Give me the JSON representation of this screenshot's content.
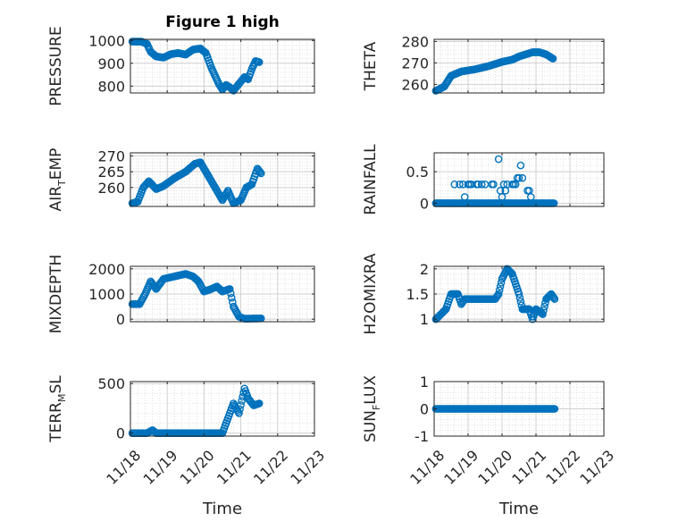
{
  "figure_title": "Figure 1 high",
  "chart_data": {
    "type": "scatter",
    "marker": "o",
    "color": "#0072BD",
    "x_axis": {
      "label": "Time",
      "tick_labels": [
        "11/18",
        "11/19",
        "11/20",
        "11/21",
        "11/22",
        "11/23"
      ],
      "tick_days": [
        0,
        1,
        2,
        3,
        4,
        5
      ],
      "xlim": [
        0,
        5
      ]
    },
    "panels": [
      {
        "name": "pressure",
        "ylabel": "PRESSURE",
        "title": "Figure 1 high",
        "ylim": [
          770,
          1005
        ],
        "yticks": [
          800,
          900,
          1000
        ],
        "ytick_labels": [
          "800",
          "900",
          "1000"
        ],
        "knots": [
          [
            0.05,
            995
          ],
          [
            0.3,
            995
          ],
          [
            0.45,
            985
          ],
          [
            0.55,
            950
          ],
          [
            0.7,
            930
          ],
          [
            0.9,
            925
          ],
          [
            1.1,
            940
          ],
          [
            1.3,
            945
          ],
          [
            1.5,
            938
          ],
          [
            1.7,
            960
          ],
          [
            1.9,
            965
          ],
          [
            2.05,
            945
          ],
          [
            2.2,
            880
          ],
          [
            2.4,
            810
          ],
          [
            2.5,
            785
          ],
          [
            2.6,
            805
          ],
          [
            2.7,
            795
          ],
          [
            2.8,
            780
          ],
          [
            2.9,
            800
          ],
          [
            3.1,
            840
          ],
          [
            3.2,
            830
          ],
          [
            3.3,
            875
          ],
          [
            3.4,
            910
          ],
          [
            3.5,
            905
          ]
        ]
      },
      {
        "name": "theta",
        "ylabel": "THETA",
        "ylim": [
          256,
          281
        ],
        "yticks": [
          260,
          270,
          280
        ],
        "ytick_labels": [
          "260",
          "270",
          "280"
        ],
        "knots": [
          [
            0.05,
            257
          ],
          [
            0.3,
            259
          ],
          [
            0.5,
            264
          ],
          [
            0.8,
            266
          ],
          [
            1.2,
            267
          ],
          [
            1.6,
            268.5
          ],
          [
            2.0,
            270.5
          ],
          [
            2.3,
            271.5
          ],
          [
            2.5,
            273
          ],
          [
            2.7,
            274
          ],
          [
            2.9,
            275
          ],
          [
            3.1,
            275
          ],
          [
            3.3,
            274
          ],
          [
            3.5,
            272
          ]
        ]
      },
      {
        "name": "air_temp",
        "ylabel": "AIR",
        "ylabel_sub": "T",
        "ylabel_rest": "EMP",
        "ylim": [
          254,
          271
        ],
        "yticks": [
          260,
          265,
          270
        ],
        "ytick_labels": [
          "260",
          "265",
          "270"
        ],
        "knots": [
          [
            0.05,
            255
          ],
          [
            0.2,
            255.5
          ],
          [
            0.35,
            260
          ],
          [
            0.5,
            262
          ],
          [
            0.7,
            259.5
          ],
          [
            0.9,
            260.5
          ],
          [
            1.2,
            263
          ],
          [
            1.5,
            265
          ],
          [
            1.75,
            267.5
          ],
          [
            1.9,
            268
          ],
          [
            2.05,
            265
          ],
          [
            2.3,
            260
          ],
          [
            2.5,
            256
          ],
          [
            2.65,
            259
          ],
          [
            2.8,
            255
          ],
          [
            3.0,
            256
          ],
          [
            3.15,
            260
          ],
          [
            3.3,
            261
          ],
          [
            3.45,
            266
          ],
          [
            3.55,
            264.5
          ]
        ]
      },
      {
        "name": "rainfall",
        "ylabel": "RAINFALL",
        "ylim": [
          -0.05,
          0.8
        ],
        "yticks": [
          0,
          0.5
        ],
        "ytick_labels": [
          "0",
          "0.5"
        ],
        "baseline": 0,
        "x_range": [
          0.05,
          3.55
        ],
        "spikes": [
          [
            0.6,
            0.3
          ],
          [
            0.75,
            0.3
          ],
          [
            0.85,
            0.3
          ],
          [
            0.9,
            0.1
          ],
          [
            1.0,
            0.3
          ],
          [
            1.05,
            0.3
          ],
          [
            1.1,
            0.3
          ],
          [
            1.25,
            0.3
          ],
          [
            1.3,
            0.3
          ],
          [
            1.4,
            0.3
          ],
          [
            1.5,
            0.3
          ],
          [
            1.7,
            0.3
          ],
          [
            1.75,
            0.3
          ],
          [
            1.9,
            0.7
          ],
          [
            1.95,
            0.2
          ],
          [
            2.0,
            0.1
          ],
          [
            2.05,
            0.3
          ],
          [
            2.1,
            0.2
          ],
          [
            2.15,
            0.3
          ],
          [
            2.3,
            0.3
          ],
          [
            2.35,
            0.3
          ],
          [
            2.4,
            0.3
          ],
          [
            2.45,
            0.4
          ],
          [
            2.5,
            0.4
          ],
          [
            2.55,
            0.6
          ],
          [
            2.6,
            0.4
          ],
          [
            2.75,
            0.2
          ],
          [
            2.8,
            0.2
          ],
          [
            2.85,
            0.1
          ]
        ]
      },
      {
        "name": "mixdepth",
        "ylabel": "MIXDEPTH",
        "ylim": [
          -100,
          2100
        ],
        "yticks": [
          0,
          1000,
          2000
        ],
        "ytick_labels": [
          "0",
          "1000",
          "2000"
        ],
        "knots": [
          [
            0.05,
            600
          ],
          [
            0.25,
            600
          ],
          [
            0.4,
            1000
          ],
          [
            0.55,
            1500
          ],
          [
            0.7,
            1200
          ],
          [
            0.9,
            1600
          ],
          [
            1.2,
            1700
          ],
          [
            1.5,
            1800
          ],
          [
            1.7,
            1700
          ],
          [
            1.85,
            1500
          ],
          [
            2.0,
            1100
          ],
          [
            2.2,
            1200
          ],
          [
            2.35,
            1300
          ],
          [
            2.5,
            1100
          ],
          [
            2.7,
            1200
          ],
          [
            2.8,
            500
          ],
          [
            2.95,
            100
          ],
          [
            3.1,
            20
          ],
          [
            3.55,
            30
          ]
        ]
      },
      {
        "name": "h2omixra",
        "ylabel": "H2OMIXRA",
        "ylim": [
          0.95,
          2.05
        ],
        "yticks": [
          1,
          1.5,
          2
        ],
        "ytick_labels": [
          "1",
          "1.5",
          "2"
        ],
        "knots": [
          [
            0.05,
            1.0
          ],
          [
            0.2,
            1.1
          ],
          [
            0.35,
            1.2
          ],
          [
            0.5,
            1.5
          ],
          [
            0.7,
            1.5
          ],
          [
            0.8,
            1.3
          ],
          [
            0.9,
            1.4
          ],
          [
            1.5,
            1.4
          ],
          [
            1.8,
            1.4
          ],
          [
            1.9,
            1.5
          ],
          [
            2.0,
            1.8
          ],
          [
            2.15,
            2.0
          ],
          [
            2.3,
            1.9
          ],
          [
            2.5,
            1.5
          ],
          [
            2.6,
            1.2
          ],
          [
            2.8,
            1.2
          ],
          [
            2.9,
            1.0
          ],
          [
            3.0,
            1.2
          ],
          [
            3.2,
            1.1
          ],
          [
            3.3,
            1.4
          ],
          [
            3.45,
            1.5
          ],
          [
            3.55,
            1.4
          ]
        ]
      },
      {
        "name": "terr_msl",
        "ylabel": "TERR",
        "ylabel_sub": "M",
        "ylabel_rest": "SL",
        "ylim": [
          -30,
          520
        ],
        "yticks": [
          0,
          500
        ],
        "ytick_labels": [
          "0",
          "500"
        ],
        "knots": [
          [
            0.05,
            0
          ],
          [
            0.45,
            0
          ],
          [
            0.6,
            30
          ],
          [
            0.7,
            0
          ],
          [
            2.3,
            0
          ],
          [
            2.5,
            0
          ],
          [
            2.6,
            100
          ],
          [
            2.8,
            300
          ],
          [
            2.95,
            200
          ],
          [
            3.1,
            450
          ],
          [
            3.2,
            350
          ],
          [
            3.35,
            280
          ],
          [
            3.5,
            300
          ]
        ]
      },
      {
        "name": "sun_flux",
        "ylabel": "SUN",
        "ylabel_sub": "F",
        "ylabel_rest": "LUX",
        "ylim": [
          -1,
          1
        ],
        "yticks": [
          -1,
          0,
          1
        ],
        "ytick_labels": [
          "-1",
          "0",
          "1"
        ],
        "constant": 0,
        "x_range": [
          0.05,
          3.55
        ]
      }
    ]
  }
}
